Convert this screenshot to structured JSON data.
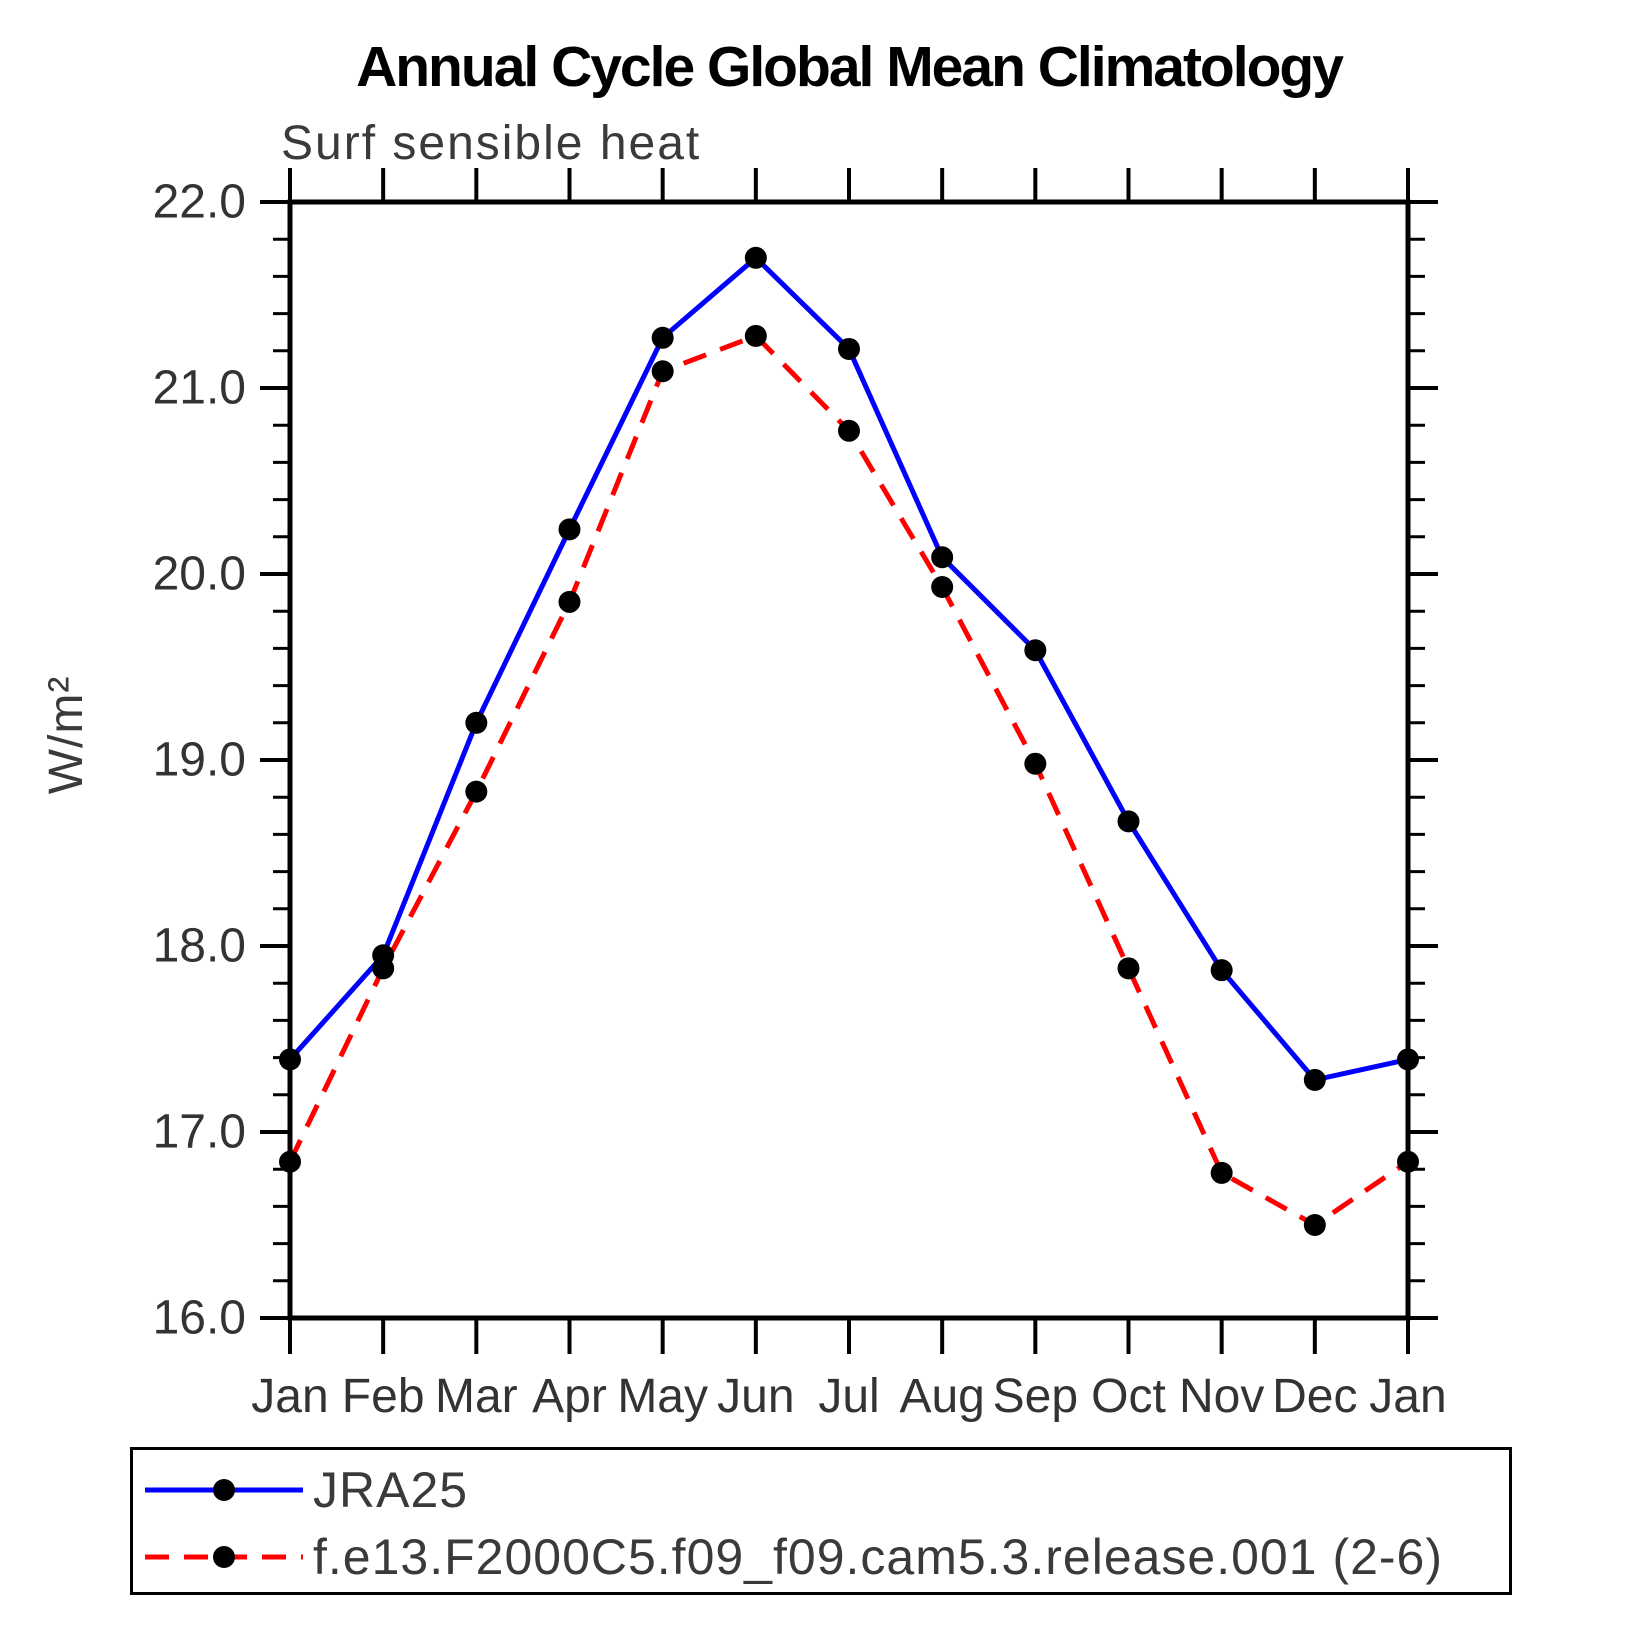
{
  "chart_data": {
    "type": "line",
    "title": "Annual Cycle Global Mean Climatology",
    "subtitle": "Surf sensible heat",
    "ylabel": "W/m²",
    "xlabel": "",
    "x_categories": [
      "Jan",
      "Feb",
      "Mar",
      "Apr",
      "May",
      "Jun",
      "Jul",
      "Aug",
      "Sep",
      "Oct",
      "Nov",
      "Dec",
      "Jan"
    ],
    "ylim": [
      16.0,
      22.0
    ],
    "ytick_labels": [
      "16.0",
      "17.0",
      "18.0",
      "19.0",
      "20.0",
      "21.0",
      "22.0"
    ],
    "minor_tick_step": 0.2,
    "grid": false,
    "legend_position": "bottom",
    "frame_color": "#000000",
    "tick_label_color": "#333333",
    "series": [
      {
        "name": "JRA25",
        "color": "#0000ff",
        "line_style": "solid",
        "marker": "filled-circle",
        "marker_color": "#000000",
        "values": [
          17.39,
          17.95,
          19.2,
          20.24,
          21.27,
          21.7,
          21.21,
          20.09,
          19.59,
          18.67,
          17.87,
          17.28,
          17.39
        ]
      },
      {
        "name": "f.e13.F2000C5.f09_f09.cam5.3.release.001 (2-6)",
        "color": "#ff0000",
        "line_style": "dashed",
        "marker": "filled-circle",
        "marker_color": "#000000",
        "values": [
          16.84,
          17.88,
          18.83,
          19.85,
          21.09,
          21.28,
          20.77,
          19.93,
          18.98,
          17.88,
          16.78,
          16.5,
          16.84
        ]
      }
    ]
  }
}
